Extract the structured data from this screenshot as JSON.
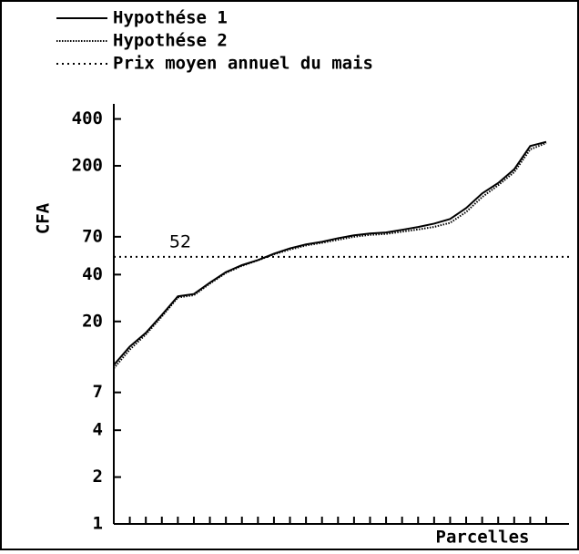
{
  "chart_data": {
    "type": "line",
    "ylabel": "CFA",
    "xlabel": "Parcelles",
    "log_y": true,
    "ylim": [
      1,
      500
    ],
    "yticks": [
      1,
      2,
      4,
      7,
      20,
      40,
      70,
      200,
      400
    ],
    "categories": [
      null,
      null,
      null,
      null,
      null,
      null,
      null,
      null,
      null,
      null,
      null,
      null,
      null,
      null,
      null,
      null,
      null,
      null,
      null,
      null,
      null,
      null,
      null,
      null,
      null,
      null,
      null,
      null
    ],
    "series": [
      {
        "name": "Hypothése 1",
        "color": "#000000",
        "style": "solid",
        "values": [
          10.5,
          13.8,
          16.9,
          22,
          29,
          30,
          35.5,
          41.5,
          46,
          49.6,
          54.5,
          59,
          62.5,
          65,
          68.5,
          71.5,
          73.5,
          74.6,
          77.6,
          80.9,
          85,
          91,
          107,
          133,
          155,
          190,
          268,
          285
        ]
      },
      {
        "name": "Hypothése 2",
        "color": "#000000",
        "style": "fine",
        "values": [
          10,
          13.2,
          16.5,
          21.5,
          28.5,
          29.5,
          35,
          41,
          45.5,
          49.4,
          54,
          58,
          61.5,
          64,
          67,
          70,
          72,
          73,
          75.5,
          78,
          81,
          86,
          101,
          126,
          150,
          182,
          255,
          280
        ]
      }
    ],
    "reference_line": {
      "name": "Prix moyen annuel du mais",
      "value": 52,
      "style": "dotted"
    }
  }
}
